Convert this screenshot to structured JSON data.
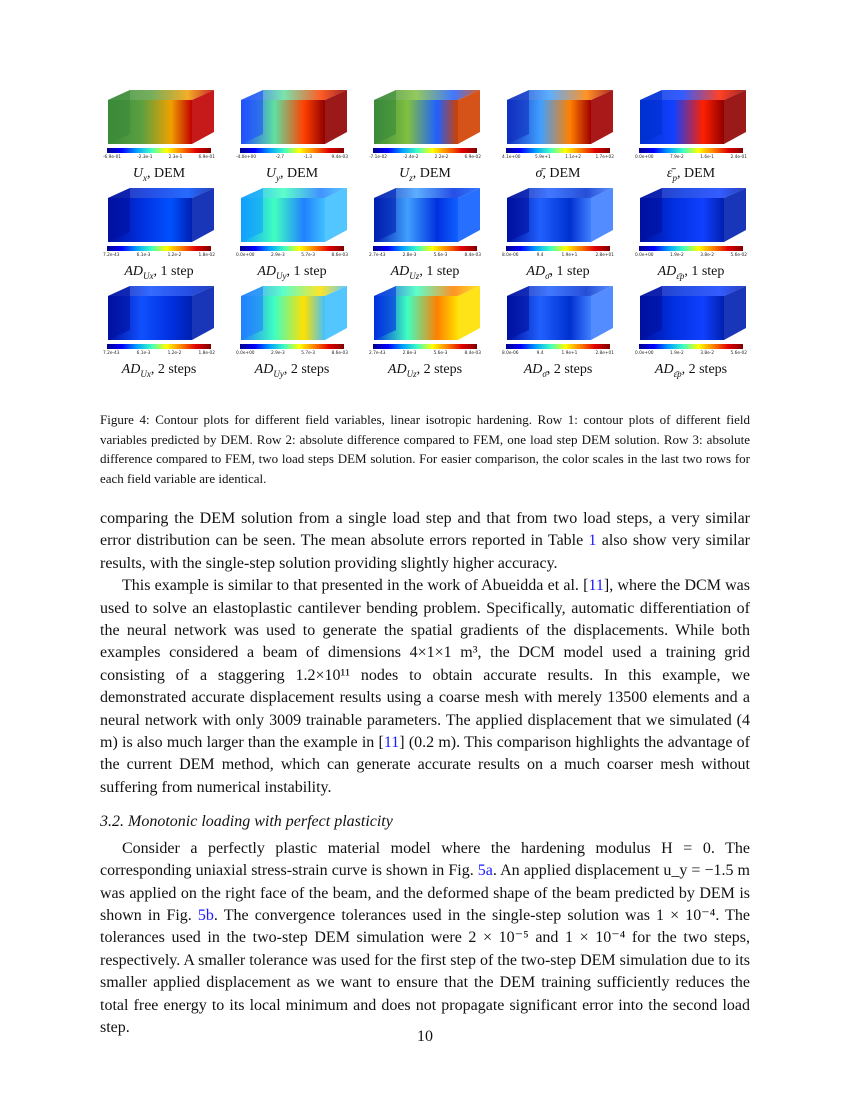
{
  "figure": {
    "rows": [
      {
        "panels": [
          {
            "label_main": "U",
            "label_sub": "x",
            "label_suffix": ", DEM",
            "ticks": [
              "-6.9e-01",
              "-2.3e-1",
              "2.3e-1",
              "6.9e-01"
            ]
          },
          {
            "label_main": "U",
            "label_sub": "y",
            "label_suffix": ", DEM",
            "ticks": [
              "-4.0e+00",
              "-2.7",
              "-1.3",
              "9.4e-03"
            ]
          },
          {
            "label_main": "U",
            "label_sub": "z",
            "label_suffix": ", DEM",
            "ticks": [
              "-7.1e-02",
              "-2.4e-2",
              "2.2e-2",
              "6.9e-02"
            ]
          },
          {
            "label_main": "σ̄",
            "label_sub": "",
            "label_suffix": ", DEM",
            "ticks": [
              "4.1e+00",
              "5.9e+1",
              "1.1e+2",
              "1.7e+02"
            ]
          },
          {
            "label_main": "ε̄",
            "label_sub": "p",
            "label_suffix": ", DEM",
            "ticks": [
              "0.0e+00",
              "7.9e-2",
              "1.6e-1",
              "2.4e-01"
            ]
          }
        ]
      },
      {
        "panels": [
          {
            "label_main": "AD",
            "label_sub": "Ux",
            "label_suffix": ", 1 step",
            "ticks": [
              "7.2e-43",
              "6.1e-3",
              "1.2e-2",
              "1.8e-02"
            ]
          },
          {
            "label_main": "AD",
            "label_sub": "Uy",
            "label_suffix": ", 1 step",
            "ticks": [
              "0.0e+00",
              "2.9e-3",
              "5.7e-3",
              "8.6e-03"
            ]
          },
          {
            "label_main": "AD",
            "label_sub": "Uz",
            "label_suffix": ", 1 step",
            "ticks": [
              "2.7e-43",
              "2.8e-3",
              "5.6e-3",
              "8.4e-03"
            ]
          },
          {
            "label_main": "AD",
            "label_sub": "σ̄",
            "label_suffix": ", 1 step",
            "ticks": [
              "8.0e-06",
              "9.4",
              "1.9e+1",
              "2.8e+01"
            ]
          },
          {
            "label_main": "AD",
            "label_sub": "ε̄p",
            "label_suffix": ", 1 step",
            "ticks": [
              "0.0e+00",
              "1.9e-2",
              "3.8e-2",
              "5.6e-02"
            ]
          }
        ]
      },
      {
        "panels": [
          {
            "label_main": "AD",
            "label_sub": "Ux",
            "label_suffix": ", 2 steps",
            "ticks": [
              "7.2e-43",
              "6.1e-3",
              "1.2e-2",
              "1.8e-02"
            ]
          },
          {
            "label_main": "AD",
            "label_sub": "Uy",
            "label_suffix": ", 2 steps",
            "ticks": [
              "0.0e+00",
              "2.9e-3",
              "5.7e-3",
              "8.6e-03"
            ]
          },
          {
            "label_main": "AD",
            "label_sub": "Uz",
            "label_suffix": ", 2 steps",
            "ticks": [
              "2.7e-43",
              "2.8e-3",
              "5.6e-3",
              "8.4e-03"
            ]
          },
          {
            "label_main": "AD",
            "label_sub": "σ̄",
            "label_suffix": ", 2 steps",
            "ticks": [
              "8.0e-06",
              "9.4",
              "1.9e+1",
              "2.8e+01"
            ]
          },
          {
            "label_main": "AD",
            "label_sub": "ε̄p",
            "label_suffix": ", 2 steps",
            "ticks": [
              "0.0e+00",
              "1.9e-2",
              "3.8e-2",
              "5.6e-02"
            ]
          }
        ]
      }
    ],
    "caption": "Figure 4: Contour plots for different field variables, linear isotropic hardening. Row 1: contour plots of different field variables predicted by DEM. Row 2: absolute difference compared to FEM, one load step DEM solution. Row 3: absolute difference compared to FEM, two load steps DEM solution. For easier comparison, the color scales in the last two rows for each field variable are identical."
  },
  "paragraphs": {
    "p1_a": "comparing the DEM solution from a single load step and that from two load steps, a very similar error distribution can be seen. The mean absolute errors reported in Table ",
    "p1_ref": "1",
    "p1_b": " also show very similar results, with the single-step solution providing slightly higher accuracy.",
    "p2_a": "This example is similar to that presented in the work of Abueidda et al. [",
    "p2_ref1": "11",
    "p2_b": "], where the DCM was used to solve an elastoplastic cantilever bending problem. Specifically, automatic differentiation of the neural network was used to generate the spatial gradients of the displacements. While both examples considered a beam of dimensions 4×1×1 m³, the DCM model used a training grid consisting of a staggering 1.2×10¹¹ nodes to obtain accurate results. In this example, we demonstrated accurate displacement results using a coarse mesh with merely 13500 elements and a neural network with only 3009 trainable parameters. The applied displacement that we simulated (4 m) is also much larger than the example in [",
    "p2_ref2": "11",
    "p2_c": "] (0.2 m). This comparison highlights the advantage of the current DEM method, which can generate accurate results on a much coarser mesh without suffering from numerical instability.",
    "section": "3.2. Monotonic loading with perfect plasticity",
    "p3_a": "Consider a perfectly plastic material model where the hardening modulus H = 0. The corresponding uniaxial stress-strain curve is shown in Fig. ",
    "p3_ref1": "5a",
    "p3_b": ". An applied displacement u_y = −1.5 m was applied on the right face of the beam, and the deformed shape of the beam predicted by DEM is shown in Fig. ",
    "p3_ref2": "5b",
    "p3_c": ". The convergence tolerances used in the single-step solution was 1 × 10⁻⁴. The tolerances used in the two-step DEM simulation were 2 × 10⁻⁵ and 1 × 10⁻⁴ for the two steps, respectively. A smaller tolerance was used for the first step of the two-step DEM simulation due to its smaller applied displacement as we want to ensure that the DEM training sufficiently reduces the total free energy to its local minimum and does not propagate significant error into the second load step."
  },
  "page_number": "10"
}
